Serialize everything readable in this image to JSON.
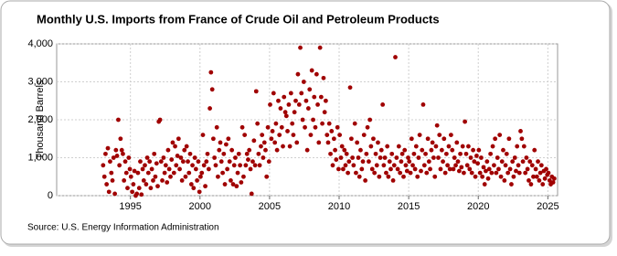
{
  "chart_data": {
    "type": "scatter",
    "title": "Monthly U.S. Imports from France of Crude Oil and Petroleum Products",
    "ylabel": "Thousand Barrels",
    "source": "Source: U.S. Energy Information Administration",
    "color": "#a00000",
    "grid": true,
    "xlim": [
      1989.7,
      2025.7
    ],
    "ylim": [
      0,
      4000
    ],
    "xticks": [
      1995,
      2000,
      2005,
      2010,
      2015,
      2020,
      2025
    ],
    "yticks": [
      0,
      {
        "value": 1000,
        "label": "1,000"
      },
      {
        "value": 2000,
        "label": "2,000"
      },
      {
        "value": 3000,
        "label": "3,000"
      },
      {
        "value": 4000,
        "label": "4,000"
      }
    ],
    "x": [
      1993.04,
      1993.13,
      1993.21,
      1993.29,
      1993.38,
      1993.46,
      1993.54,
      1993.63,
      1993.71,
      1993.79,
      1993.88,
      1993.96,
      1994.04,
      1994.13,
      1994.21,
      1994.29,
      1994.38,
      1994.46,
      1994.54,
      1994.63,
      1994.71,
      1994.79,
      1994.88,
      1994.96,
      1995.04,
      1995.13,
      1995.21,
      1995.29,
      1995.38,
      1995.46,
      1995.54,
      1995.63,
      1995.71,
      1995.79,
      1995.88,
      1995.96,
      1996.04,
      1996.13,
      1996.21,
      1996.29,
      1996.38,
      1996.46,
      1996.54,
      1996.63,
      1996.71,
      1996.79,
      1996.88,
      1996.96,
      1997.04,
      1997.13,
      1997.21,
      1997.29,
      1997.38,
      1997.46,
      1997.54,
      1997.63,
      1997.71,
      1997.79,
      1997.88,
      1997.96,
      1998.04,
      1998.13,
      1998.21,
      1998.29,
      1998.38,
      1998.46,
      1998.54,
      1998.63,
      1998.71,
      1998.79,
      1998.88,
      1998.96,
      1999.04,
      1999.13,
      1999.21,
      1999.29,
      1999.38,
      1999.46,
      1999.54,
      1999.63,
      1999.71,
      1999.79,
      1999.88,
      1999.96,
      2000.04,
      2000.13,
      2000.21,
      2000.29,
      2000.38,
      2000.46,
      2000.54,
      2000.63,
      2000.71,
      2000.79,
      2000.88,
      2000.96,
      2001.04,
      2001.13,
      2001.21,
      2001.29,
      2001.38,
      2001.46,
      2001.54,
      2001.63,
      2001.71,
      2001.79,
      2001.88,
      2001.96,
      2002.04,
      2002.13,
      2002.21,
      2002.29,
      2002.38,
      2002.46,
      2002.54,
      2002.63,
      2002.71,
      2002.79,
      2002.88,
      2002.96,
      2003.04,
      2003.13,
      2003.21,
      2003.29,
      2003.38,
      2003.46,
      2003.54,
      2003.63,
      2003.71,
      2003.79,
      2003.88,
      2003.96,
      2004.04,
      2004.13,
      2004.21,
      2004.29,
      2004.38,
      2004.46,
      2004.54,
      2004.63,
      2004.71,
      2004.79,
      2004.88,
      2004.96,
      2005.04,
      2005.13,
      2005.21,
      2005.29,
      2005.38,
      2005.46,
      2005.54,
      2005.63,
      2005.71,
      2005.79,
      2005.88,
      2005.96,
      2006.04,
      2006.13,
      2006.21,
      2006.29,
      2006.38,
      2006.46,
      2006.54,
      2006.63,
      2006.71,
      2006.79,
      2006.88,
      2006.96,
      2007.04,
      2007.13,
      2007.21,
      2007.29,
      2007.38,
      2007.46,
      2007.54,
      2007.63,
      2007.71,
      2007.79,
      2007.88,
      2007.96,
      2008.04,
      2008.13,
      2008.21,
      2008.29,
      2008.38,
      2008.46,
      2008.54,
      2008.63,
      2008.71,
      2008.79,
      2008.88,
      2008.96,
      2009.04,
      2009.13,
      2009.21,
      2009.29,
      2009.38,
      2009.46,
      2009.54,
      2009.63,
      2009.71,
      2009.79,
      2009.88,
      2009.96,
      2010.04,
      2010.13,
      2010.21,
      2010.29,
      2010.38,
      2010.46,
      2010.54,
      2010.63,
      2010.71,
      2010.79,
      2010.88,
      2010.96,
      2011.04,
      2011.13,
      2011.21,
      2011.29,
      2011.38,
      2011.46,
      2011.54,
      2011.63,
      2011.71,
      2011.79,
      2011.88,
      2011.96,
      2012.04,
      2012.13,
      2012.21,
      2012.29,
      2012.38,
      2012.46,
      2012.54,
      2012.63,
      2012.71,
      2012.79,
      2012.88,
      2012.96,
      2013.04,
      2013.13,
      2013.21,
      2013.29,
      2013.38,
      2013.46,
      2013.54,
      2013.63,
      2013.71,
      2013.79,
      2013.88,
      2013.96,
      2014.04,
      2014.13,
      2014.21,
      2014.29,
      2014.38,
      2014.46,
      2014.54,
      2014.63,
      2014.71,
      2014.79,
      2014.88,
      2014.96,
      2015.04,
      2015.13,
      2015.21,
      2015.29,
      2015.38,
      2015.46,
      2015.54,
      2015.63,
      2015.71,
      2015.79,
      2015.88,
      2015.96,
      2016.04,
      2016.13,
      2016.21,
      2016.29,
      2016.38,
      2016.46,
      2016.54,
      2016.63,
      2016.71,
      2016.79,
      2016.88,
      2016.96,
      2017.04,
      2017.13,
      2017.21,
      2017.29,
      2017.38,
      2017.46,
      2017.54,
      2017.63,
      2017.71,
      2017.79,
      2017.88,
      2017.96,
      2018.04,
      2018.13,
      2018.21,
      2018.29,
      2018.38,
      2018.46,
      2018.54,
      2018.63,
      2018.71,
      2018.79,
      2018.88,
      2018.96,
      2019.04,
      2019.13,
      2019.21,
      2019.29,
      2019.38,
      2019.46,
      2019.54,
      2019.63,
      2019.71,
      2019.79,
      2019.88,
      2019.96,
      2020.04,
      2020.13,
      2020.21,
      2020.29,
      2020.38,
      2020.46,
      2020.54,
      2020.63,
      2020.71,
      2020.79,
      2020.88,
      2020.96,
      2021.04,
      2021.13,
      2021.21,
      2021.29,
      2021.38,
      2021.46,
      2021.54,
      2021.63,
      2021.71,
      2021.79,
      2021.88,
      2021.96,
      2022.04,
      2022.13,
      2022.21,
      2022.29,
      2022.38,
      2022.46,
      2022.54,
      2022.63,
      2022.71,
      2022.79,
      2022.88,
      2022.96,
      2023.04,
      2023.13,
      2023.21,
      2023.29,
      2023.38,
      2023.46,
      2023.54,
      2023.63,
      2023.71,
      2023.79,
      2023.88,
      2023.96,
      2024.04,
      2024.13,
      2024.21,
      2024.29,
      2024.38,
      2024.46,
      2024.54,
      2024.63,
      2024.71,
      2024.79,
      2024.88,
      2024.96,
      2025.04,
      2025.13,
      2025.21,
      2025.29,
      2025.38,
      2025.46
    ],
    "values": [
      800,
      500,
      1100,
      300,
      1250,
      100,
      900,
      600,
      400,
      1000,
      50,
      1200,
      1050,
      2000,
      800,
      1500,
      1200,
      1100,
      400,
      900,
      600,
      200,
      1000,
      700,
      500,
      100,
      300,
      650,
      0,
      50,
      600,
      200,
      900,
      30,
      700,
      400,
      800,
      300,
      1000,
      600,
      900,
      200,
      700,
      400,
      1100,
      500,
      850,
      250,
      1950,
      2000,
      900,
      400,
      1000,
      600,
      800,
      350,
      1200,
      700,
      500,
      950,
      1400,
      600,
      1300,
      800,
      1050,
      1500,
      700,
      1000,
      400,
      900,
      1200,
      500,
      1300,
      900,
      600,
      1100,
      300,
      800,
      200,
      1000,
      700,
      400,
      900,
      100,
      500,
      600,
      1600,
      800,
      250,
      900,
      1100,
      700,
      2300,
      3250,
      2800,
      1500,
      1000,
      800,
      1800,
      500,
      1200,
      1400,
      900,
      600,
      1100,
      300,
      1350,
      700,
      1500,
      900,
      400,
      1200,
      300,
      800,
      1000,
      250,
      600,
      1100,
      800,
      350,
      1800,
      500,
      1600,
      800,
      1100,
      950,
      1200,
      700,
      50,
      900,
      1450,
      800,
      2750,
      1900,
      1100,
      800,
      1300,
      1600,
      1000,
      1400,
      1200,
      500,
      1800,
      900,
      2400,
      1500,
      1700,
      2700,
      1400,
      1900,
      1200,
      2500,
      1600,
      2300,
      1800,
      1300,
      2600,
      2200,
      2100,
      1700,
      2400,
      1300,
      2700,
      1900,
      1600,
      2200,
      2500,
      1400,
      3200,
      2400,
      3900,
      2700,
      2000,
      3000,
      1800,
      2500,
      1200,
      2300,
      2800,
      1600,
      3300,
      2000,
      2600,
      1800,
      3200,
      2400,
      1400,
      3900,
      2600,
      1900,
      3100,
      2200,
      2500,
      1600,
      1400,
      1900,
      1100,
      1700,
      800,
      1500,
      1200,
      950,
      1800,
      700,
      1600,
      1000,
      1300,
      700,
      1200,
      800,
      1100,
      600,
      900,
      2850,
      1500,
      1000,
      800,
      1900,
      600,
      1400,
      1000,
      500,
      1200,
      700,
      900,
      1600,
      400,
      1100,
      1800,
      900,
      2000,
      1300,
      700,
      1500,
      600,
      1100,
      800,
      1400,
      500,
      1000,
      1200,
      2400,
      800,
      1000,
      600,
      1300,
      500,
      900,
      700,
      1100,
      400,
      800,
      3650,
      1000,
      700,
      1300,
      600,
      900,
      1100,
      500,
      1200,
      800,
      650,
      1000,
      900,
      600,
      1500,
      800,
      1100,
      700,
      1300,
      500,
      1000,
      1600,
      650,
      1200,
      2400,
      800,
      1100,
      600,
      1500,
      900,
      700,
      1200,
      1400,
      1000,
      500,
      1300,
      1850,
      1000,
      1600,
      700,
      1200,
      900,
      1500,
      600,
      1100,
      800,
      1300,
      700,
      1600,
      1200,
      700,
      1000,
      800,
      1400,
      900,
      650,
      1100,
      750,
      1300,
      600,
      1950,
      1100,
      800,
      1300,
      700,
      1000,
      600,
      1200,
      900,
      500,
      1050,
      850,
      1200,
      600,
      1000,
      500,
      750,
      300,
      650,
      900,
      450,
      700,
      1100,
      600,
      1300,
      800,
      1500,
      600,
      1000,
      700,
      1600,
      500,
      900,
      1200,
      400,
      800,
      1100,
      600,
      1500,
      700,
      300,
      900,
      500,
      1000,
      650,
      1300,
      800,
      600,
      1700,
      1500,
      900,
      1300,
      600,
      1000,
      700,
      400,
      900,
      300,
      800,
      500,
      1200,
      700,
      500,
      900,
      400,
      600,
      800,
      300,
      650,
      450,
      700,
      550,
      600,
      400,
      300,
      500,
      350,
      450
    ]
  }
}
